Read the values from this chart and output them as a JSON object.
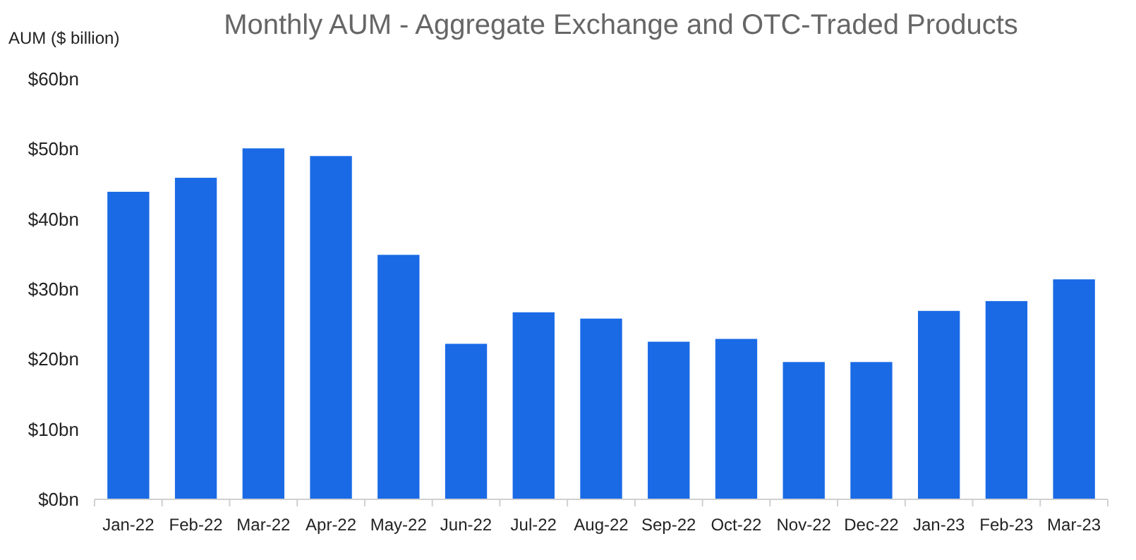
{
  "chart_data": {
    "type": "bar",
    "title": "Monthly AUM - Aggregate Exchange and OTC-Traded Products",
    "ylabel": "AUM ($ billion)",
    "categories": [
      "Jan-22",
      "Feb-22",
      "Mar-22",
      "Apr-22",
      "May-22",
      "Jun-22",
      "Jul-22",
      "Aug-22",
      "Sep-22",
      "Oct-22",
      "Nov-22",
      "Dec-22",
      "Jan-23",
      "Feb-23",
      "Mar-23"
    ],
    "values": [
      43.9,
      45.9,
      50.1,
      49.0,
      34.9,
      22.2,
      26.7,
      25.8,
      22.5,
      22.9,
      19.6,
      19.6,
      26.9,
      28.3,
      31.4
    ],
    "color": "#1a6ae6",
    "ylim": [
      0,
      60
    ],
    "yticks": [
      {
        "value": 0,
        "label": "$0bn"
      },
      {
        "value": 10,
        "label": "$10bn"
      },
      {
        "value": 20,
        "label": "$20bn"
      },
      {
        "value": 30,
        "label": "$30bn"
      },
      {
        "value": 40,
        "label": "$40bn"
      },
      {
        "value": 50,
        "label": "$50bn"
      },
      {
        "value": 60,
        "label": "$60bn"
      }
    ],
    "grid": false
  }
}
